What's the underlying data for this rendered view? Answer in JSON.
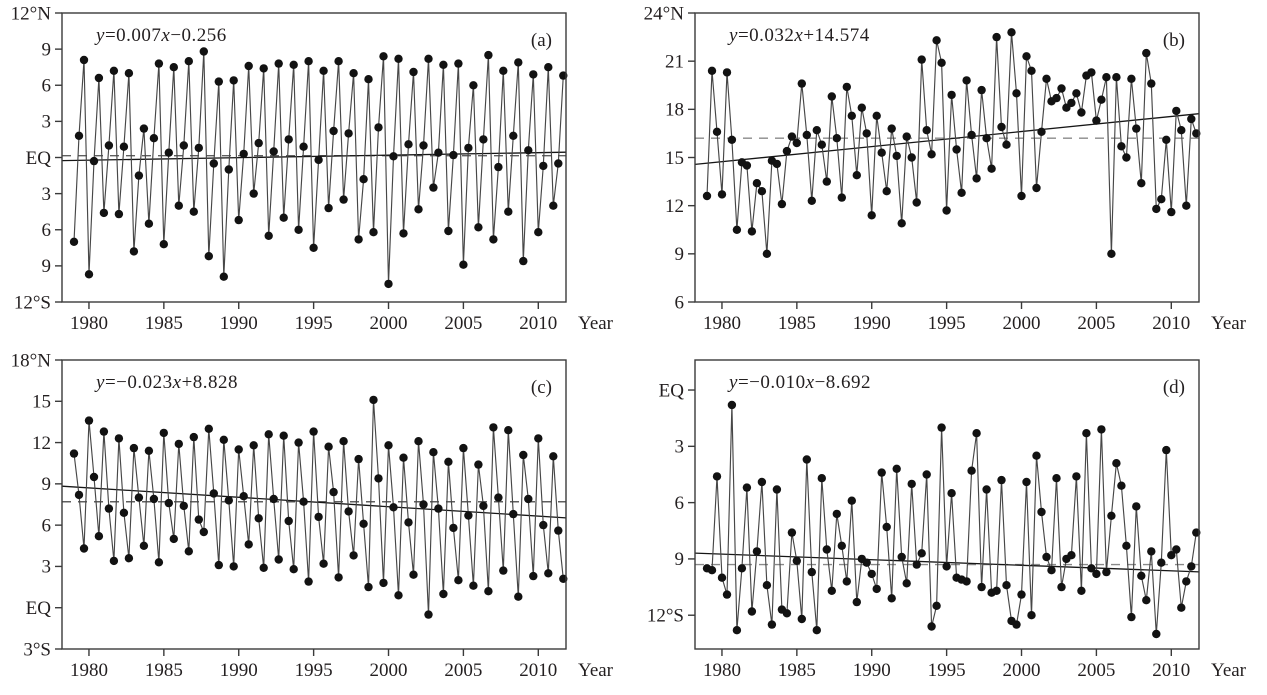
{
  "figure": {
    "background": "#ffffff",
    "text_color": "#231f20",
    "axis_color": "#3a3a3a",
    "series_color": "#474747",
    "dot_color": "#121212",
    "trend_color": "#161616",
    "xlabel": "Year",
    "tick_font_px": 19
  },
  "chart_data": [
    {
      "type": "line",
      "panel_label": "(a)",
      "equation": "y=0.007x−0.256",
      "xlabel": "Year",
      "ylabel": "Latitude",
      "x_note": "3 values per year, 1979–2011",
      "start_year": 1979,
      "points_per_year": 3,
      "xlim": [
        1978.2,
        2011.85
      ],
      "xticks": [
        1980,
        1985,
        1990,
        1995,
        2000,
        2005,
        2010
      ],
      "ylim": [
        -12,
        12
      ],
      "yticks": [
        {
          "v": 12,
          "label": "12°N"
        },
        {
          "v": 9,
          "label": "9"
        },
        {
          "v": 6,
          "label": "6"
        },
        {
          "v": 3,
          "label": "3"
        },
        {
          "v": 0,
          "label": "EQ"
        },
        {
          "v": -3,
          "label": "3"
        },
        {
          "v": -6,
          "label": "6"
        },
        {
          "v": -9,
          "label": "9"
        },
        {
          "v": -12,
          "label": "12°S"
        }
      ],
      "mean": 0.15,
      "mean_color": "#5f5f5f",
      "trend": {
        "y_start": -0.26,
        "y_end": 0.44
      },
      "values": [
        -7.0,
        1.8,
        8.1,
        -9.7,
        -0.3,
        6.6,
        -4.6,
        1.0,
        7.2,
        -4.7,
        0.9,
        7.0,
        -7.8,
        -1.5,
        2.4,
        -5.5,
        1.6,
        7.8,
        -7.2,
        0.4,
        7.5,
        -4.0,
        1.0,
        8.0,
        -4.5,
        0.8,
        8.8,
        -8.2,
        -0.5,
        6.3,
        -9.9,
        -1.0,
        6.4,
        -5.2,
        0.3,
        7.6,
        -3.0,
        1.2,
        7.4,
        -6.5,
        0.5,
        7.8,
        -5.0,
        1.5,
        7.7,
        -6.0,
        0.9,
        8.0,
        -7.5,
        -0.2,
        7.2,
        -4.2,
        2.2,
        8.0,
        -3.5,
        2.0,
        7.0,
        -6.8,
        -1.8,
        6.5,
        -6.2,
        2.5,
        8.4,
        -10.5,
        0.1,
        8.2,
        -6.3,
        1.1,
        7.1,
        -4.3,
        1.0,
        8.2,
        -2.5,
        0.4,
        7.7,
        -6.1,
        0.2,
        7.8,
        -8.9,
        0.8,
        6.0,
        -5.8,
        1.5,
        8.5,
        -6.8,
        -0.8,
        7.2,
        -4.5,
        1.8,
        7.9,
        -8.6,
        0.6,
        6.9,
        -6.2,
        -0.7,
        7.5,
        -4.0,
        -0.5,
        6.8
      ]
    },
    {
      "type": "line",
      "panel_label": "(b)",
      "equation": "y=0.032x+14.574",
      "xlabel": "Year",
      "ylabel": "Latitude",
      "x_note": "3 values per year, 1979–2011",
      "start_year": 1979,
      "points_per_year": 3,
      "xlim": [
        1978.2,
        2011.85
      ],
      "xticks": [
        1980,
        1985,
        1990,
        1995,
        2000,
        2005,
        2010
      ],
      "ylim": [
        6,
        24
      ],
      "yticks": [
        {
          "v": 24,
          "label": "24°N"
        },
        {
          "v": 21,
          "label": "21"
        },
        {
          "v": 18,
          "label": "18"
        },
        {
          "v": 15,
          "label": "15"
        },
        {
          "v": 12,
          "label": "12"
        },
        {
          "v": 9,
          "label": "9"
        },
        {
          "v": 6,
          "label": "6"
        }
      ],
      "mean": 16.2,
      "mean_color": "#8a8a8a",
      "trend": {
        "y_start": 14.57,
        "y_end": 17.73
      },
      "values": [
        12.6,
        20.4,
        16.6,
        12.7,
        20.3,
        16.1,
        10.5,
        14.7,
        14.5,
        10.4,
        13.4,
        12.9,
        9.0,
        14.8,
        14.6,
        12.1,
        15.4,
        16.3,
        15.9,
        19.6,
        16.4,
        12.3,
        16.7,
        15.8,
        13.5,
        18.8,
        16.2,
        12.5,
        19.4,
        17.6,
        13.9,
        18.1,
        16.5,
        11.4,
        17.6,
        15.3,
        12.9,
        16.8,
        15.1,
        10.9,
        16.3,
        15.0,
        12.2,
        21.1,
        16.7,
        15.2,
        22.3,
        20.9,
        11.7,
        18.9,
        15.5,
        12.8,
        19.8,
        16.4,
        13.7,
        19.2,
        16.2,
        14.3,
        22.5,
        16.9,
        15.8,
        22.8,
        19.0,
        12.6,
        21.3,
        20.4,
        13.1,
        16.6,
        19.9,
        18.5,
        18.7,
        19.3,
        18.1,
        18.4,
        19.0,
        17.8,
        20.1,
        20.3,
        17.3,
        18.6,
        20.0,
        9.0,
        20.0,
        15.7,
        15.0,
        19.9,
        16.8,
        13.4,
        21.5,
        19.6,
        11.8,
        12.4,
        16.1,
        11.6,
        17.9,
        16.7,
        12.0,
        17.4,
        16.5
      ]
    },
    {
      "type": "line",
      "panel_label": "(c)",
      "equation": "y=−0.023x+8.828",
      "xlabel": "Year",
      "ylabel": "Latitude",
      "x_note": "3 values per year, 1979–2011",
      "start_year": 1979,
      "points_per_year": 3,
      "xlim": [
        1978.2,
        2011.85
      ],
      "xticks": [
        1980,
        1985,
        1990,
        1995,
        2000,
        2005,
        2010
      ],
      "ylim": [
        -3,
        18
      ],
      "yticks": [
        {
          "v": 18,
          "label": "18°N"
        },
        {
          "v": 15,
          "label": "15"
        },
        {
          "v": 12,
          "label": "12"
        },
        {
          "v": 9,
          "label": "9"
        },
        {
          "v": 6,
          "label": "6"
        },
        {
          "v": 3,
          "label": "3"
        },
        {
          "v": 0,
          "label": "EQ"
        },
        {
          "v": -3,
          "label": "3°S"
        }
      ],
      "mean": 7.7,
      "mean_color": "#5f5f5f",
      "trend": {
        "y_start": 8.83,
        "y_end": 6.53
      },
      "values": [
        11.2,
        8.2,
        4.3,
        13.6,
        9.5,
        5.2,
        12.8,
        7.2,
        3.4,
        12.3,
        6.9,
        3.6,
        11.6,
        8.0,
        4.5,
        11.4,
        7.9,
        3.3,
        12.7,
        7.6,
        5.0,
        11.9,
        7.4,
        4.1,
        12.4,
        6.4,
        5.5,
        13.0,
        8.3,
        3.1,
        12.2,
        7.8,
        3.0,
        11.5,
        8.1,
        4.6,
        11.8,
        6.5,
        2.9,
        12.6,
        7.9,
        3.5,
        12.5,
        6.3,
        2.8,
        12.0,
        7.7,
        1.9,
        12.8,
        6.6,
        3.2,
        11.7,
        8.4,
        2.2,
        12.1,
        7.0,
        3.8,
        10.8,
        6.1,
        1.5,
        15.1,
        9.4,
        1.8,
        11.8,
        7.3,
        0.9,
        10.9,
        6.2,
        2.4,
        12.1,
        7.5,
        -0.5,
        11.3,
        7.2,
        1.0,
        10.6,
        5.8,
        2.0,
        11.6,
        6.7,
        1.6,
        10.4,
        7.4,
        1.2,
        13.1,
        8.0,
        2.7,
        12.9,
        6.8,
        0.8,
        11.1,
        7.9,
        2.3,
        12.3,
        6.0,
        2.5,
        11.0,
        5.6,
        2.1
      ]
    },
    {
      "type": "line",
      "panel_label": "(d)",
      "equation": "y=−0.010x−8.692",
      "xlabel": "Year",
      "ylabel": "Latitude",
      "x_note": "3 values per year, 1979–2011",
      "start_year": 1979,
      "points_per_year": 3,
      "xlim": [
        1978.2,
        2011.85
      ],
      "xticks": [
        1980,
        1985,
        1990,
        1995,
        2000,
        2005,
        2010
      ],
      "ylim": [
        -13.8,
        1.6
      ],
      "yticks": [
        {
          "v": 0,
          "label": "EQ"
        },
        {
          "v": -3,
          "label": "3"
        },
        {
          "v": -6,
          "label": "6"
        },
        {
          "v": -9,
          "label": "9"
        },
        {
          "v": -12,
          "label": "12°S"
        }
      ],
      "mean": -9.3,
      "mean_color": "#8a8a8a",
      "trend": {
        "y_start": -8.69,
        "y_end": -9.69
      },
      "values": [
        -9.5,
        -9.6,
        -4.6,
        -10.0,
        -10.9,
        -0.8,
        -12.8,
        -9.5,
        -5.2,
        -11.8,
        -8.6,
        -4.9,
        -10.4,
        -12.5,
        -5.3,
        -11.7,
        -11.9,
        -7.6,
        -9.1,
        -12.2,
        -3.7,
        -9.7,
        -12.8,
        -4.7,
        -8.5,
        -10.7,
        -6.6,
        -8.3,
        -10.2,
        -5.9,
        -11.3,
        -9.0,
        -9.2,
        -9.8,
        -10.6,
        -4.4,
        -7.3,
        -11.1,
        -4.2,
        -8.9,
        -10.3,
        -5.0,
        -9.3,
        -8.7,
        -4.5,
        -12.6,
        -11.5,
        -2.0,
        -9.4,
        -5.5,
        -10.0,
        -10.1,
        -10.2,
        -4.3,
        -2.3,
        -10.5,
        -5.3,
        -10.8,
        -10.7,
        -4.8,
        -10.4,
        -12.3,
        -12.5,
        -10.9,
        -4.9,
        -12.0,
        -3.5,
        -6.5,
        -8.9,
        -9.6,
        -4.7,
        -10.5,
        -9.0,
        -8.8,
        -4.6,
        -10.7,
        -2.3,
        -9.5,
        -9.8,
        -2.1,
        -9.7,
        -6.7,
        -3.9,
        -5.1,
        -8.3,
        -12.1,
        -6.2,
        -9.9,
        -11.2,
        -8.6,
        -13.0,
        -9.2,
        -3.2,
        -8.8,
        -8.5,
        -11.6,
        -10.2,
        -9.4,
        -7.6
      ]
    }
  ]
}
